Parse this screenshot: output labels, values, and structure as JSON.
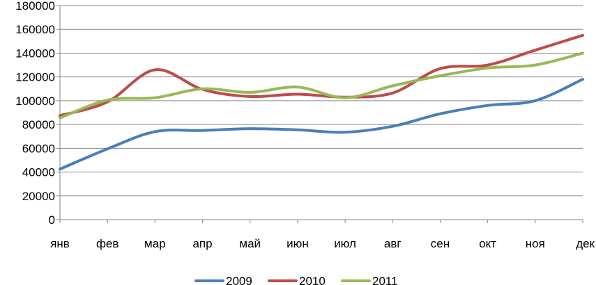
{
  "chart_data": {
    "type": "line",
    "categories": [
      "янв",
      "фев",
      "мар",
      "апр",
      "май",
      "июн",
      "июл",
      "авг",
      "сен",
      "окт",
      "ноя",
      "дек"
    ],
    "ylim": [
      0,
      180000
    ],
    "yticks": [
      "0",
      "20000",
      "40000",
      "60000",
      "80000",
      "100000",
      "120000",
      "140000",
      "160000",
      "180000"
    ],
    "grid": true,
    "legend_position": "bottom",
    "series": [
      {
        "name": "2009",
        "color": "#4a7ebb",
        "values": [
          42500,
          59500,
          74000,
          75000,
          76500,
          75500,
          73500,
          78500,
          89000,
          96000,
          100000,
          118000
        ]
      },
      {
        "name": "2010",
        "color": "#be4b48",
        "values": [
          87500,
          99000,
          126000,
          109500,
          103500,
          105500,
          103000,
          106500,
          127000,
          130000,
          142500,
          155000
        ]
      },
      {
        "name": "2011",
        "color": "#98b954",
        "values": [
          85500,
          100500,
          102500,
          110000,
          107000,
          111500,
          102500,
          112500,
          121000,
          127500,
          130000,
          140000
        ]
      }
    ]
  }
}
